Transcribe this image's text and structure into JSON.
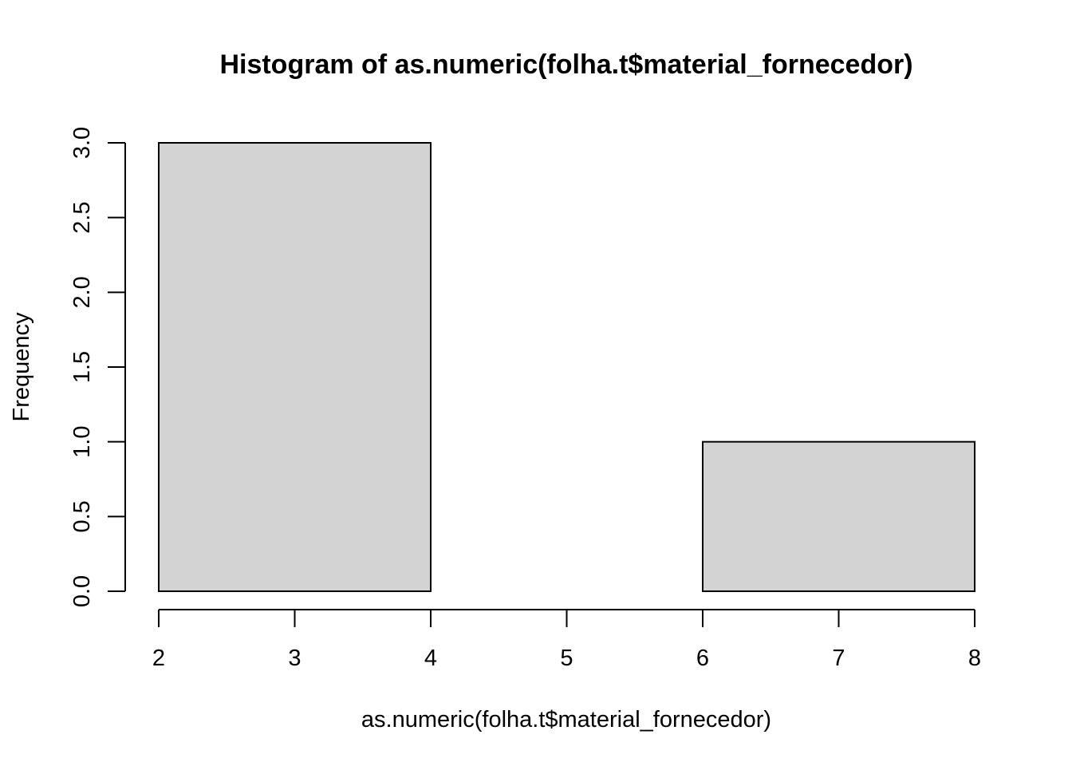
{
  "chart_data": {
    "type": "bar",
    "title": "Histogram of as.numeric(folha.t$material_fornecedor)",
    "xlabel": "as.numeric(folha.t$material_fornecedor)",
    "ylabel": "Frequency",
    "bins": [
      {
        "start": 2,
        "end": 4,
        "count": 3
      },
      {
        "start": 4,
        "end": 6,
        "count": 0
      },
      {
        "start": 6,
        "end": 8,
        "count": 1
      }
    ],
    "xlim": [
      2,
      8
    ],
    "ylim": [
      0,
      3
    ],
    "xticks": [
      2,
      3,
      4,
      5,
      6,
      7,
      8
    ],
    "xtick_labels": [
      "2",
      "3",
      "4",
      "5",
      "6",
      "7",
      "8"
    ],
    "yticks": [
      0,
      0.5,
      1,
      1.5,
      2,
      2.5,
      3
    ],
    "ytick_labels": [
      "0.0",
      "0.5",
      "1.0",
      "1.5",
      "2.0",
      "2.5",
      "3.0"
    ],
    "grid": false,
    "legend": "none",
    "colors": {
      "bar_fill": "#d3d3d3",
      "bar_stroke": "#000000",
      "axis": "#000000",
      "background": "#ffffff"
    }
  }
}
